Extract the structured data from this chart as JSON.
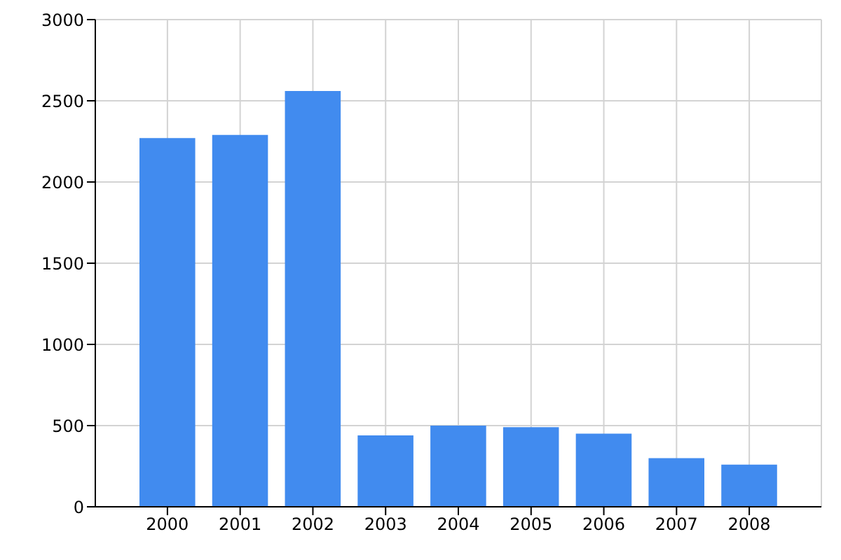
{
  "chart_data": {
    "type": "bar",
    "categories": [
      "2000",
      "2001",
      "2002",
      "2003",
      "2004",
      "2005",
      "2006",
      "2007",
      "2008"
    ],
    "values": [
      2270,
      2290,
      2560,
      440,
      500,
      490,
      450,
      300,
      260
    ],
    "color": "#418bef",
    "ylim": [
      0,
      3000
    ],
    "yticks": [
      0,
      500,
      1000,
      1500,
      2000,
      2500,
      3000
    ],
    "grid": true
  }
}
